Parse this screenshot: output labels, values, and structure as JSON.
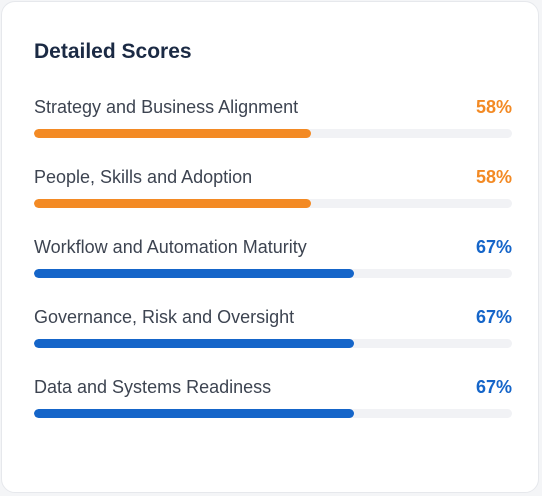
{
  "card": {
    "title": "Detailed Scores"
  },
  "colors": {
    "orange": "#f38a24",
    "blue": "#1565c9"
  },
  "scores": [
    {
      "label": "Strategy and Business Alignment",
      "value_text": "58%",
      "value": 0.58,
      "color": "orange"
    },
    {
      "label": "People, Skills and Adoption",
      "value_text": "58%",
      "value": 0.58,
      "color": "orange"
    },
    {
      "label": "Workflow and Automation Maturity",
      "value_text": "67%",
      "value": 0.67,
      "color": "blue"
    },
    {
      "label": "Governance, Risk and Oversight",
      "value_text": "67%",
      "value": 0.67,
      "color": "blue"
    },
    {
      "label": "Data and Systems Readiness",
      "value_text": "67%",
      "value": 0.67,
      "color": "blue"
    }
  ]
}
